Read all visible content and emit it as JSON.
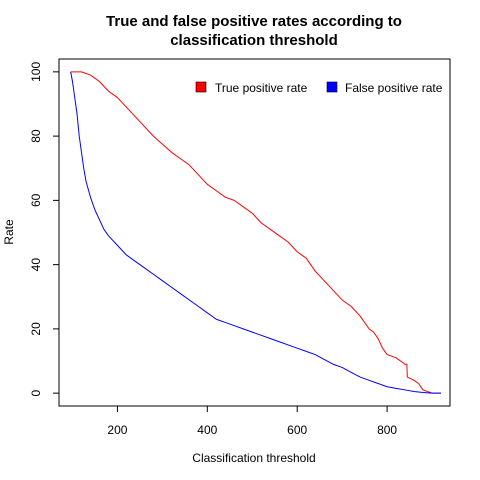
{
  "chart_data": {
    "type": "line",
    "title_lines": [
      "True and false positive rates according to",
      "classification threshold"
    ],
    "xlabel": "Classification threshold",
    "ylabel": "Rate",
    "xlim": [
      70,
      940
    ],
    "ylim": [
      -4,
      104
    ],
    "x_ticks": [
      200,
      400,
      600,
      800
    ],
    "y_ticks": [
      0,
      20,
      40,
      60,
      80,
      100
    ],
    "grid": false,
    "legend_position": "top-right",
    "colors": {
      "true_positive": "#ff0000",
      "false_positive": "#0000ff"
    },
    "series": [
      {
        "name": "True positive rate",
        "color": "#ff0000",
        "points": [
          [
            96,
            100
          ],
          [
            120,
            100
          ],
          [
            140,
            99
          ],
          [
            160,
            97
          ],
          [
            180,
            94
          ],
          [
            200,
            92
          ],
          [
            220,
            89
          ],
          [
            240,
            86
          ],
          [
            260,
            83
          ],
          [
            280,
            80
          ],
          [
            300,
            77.5
          ],
          [
            320,
            75
          ],
          [
            340,
            73
          ],
          [
            360,
            71
          ],
          [
            380,
            68
          ],
          [
            400,
            65
          ],
          [
            420,
            63
          ],
          [
            440,
            61
          ],
          [
            460,
            60
          ],
          [
            480,
            58
          ],
          [
            500,
            56
          ],
          [
            520,
            53
          ],
          [
            540,
            51
          ],
          [
            560,
            49
          ],
          [
            580,
            47
          ],
          [
            600,
            44
          ],
          [
            620,
            42
          ],
          [
            640,
            38
          ],
          [
            660,
            35
          ],
          [
            680,
            32
          ],
          [
            700,
            29
          ],
          [
            720,
            27
          ],
          [
            740,
            24
          ],
          [
            760,
            20
          ],
          [
            770,
            19
          ],
          [
            780,
            17
          ],
          [
            790,
            14
          ],
          [
            800,
            12
          ],
          [
            820,
            11
          ],
          [
            840,
            9
          ],
          [
            844,
            9
          ],
          [
            845,
            5
          ],
          [
            860,
            4
          ],
          [
            870,
            3
          ],
          [
            880,
            1
          ],
          [
            900,
            0
          ],
          [
            920,
            0
          ]
        ]
      },
      {
        "name": "False positive rate",
        "color": "#0000ff",
        "points": [
          [
            96,
            100
          ],
          [
            100,
            97
          ],
          [
            105,
            92
          ],
          [
            110,
            87
          ],
          [
            115,
            80
          ],
          [
            120,
            75
          ],
          [
            125,
            70
          ],
          [
            130,
            66
          ],
          [
            140,
            61
          ],
          [
            150,
            57
          ],
          [
            160,
            54
          ],
          [
            170,
            51
          ],
          [
            180,
            49
          ],
          [
            200,
            46
          ],
          [
            220,
            43
          ],
          [
            240,
            41
          ],
          [
            260,
            39
          ],
          [
            280,
            37
          ],
          [
            300,
            35
          ],
          [
            320,
            33
          ],
          [
            340,
            31
          ],
          [
            360,
            29
          ],
          [
            380,
            27
          ],
          [
            400,
            25
          ],
          [
            420,
            23
          ],
          [
            440,
            22
          ],
          [
            460,
            21
          ],
          [
            480,
            20
          ],
          [
            500,
            19
          ],
          [
            520,
            18
          ],
          [
            540,
            17
          ],
          [
            560,
            16
          ],
          [
            580,
            15
          ],
          [
            600,
            14
          ],
          [
            620,
            13
          ],
          [
            640,
            12
          ],
          [
            660,
            10.5
          ],
          [
            680,
            9
          ],
          [
            700,
            8
          ],
          [
            720,
            6.5
          ],
          [
            740,
            5
          ],
          [
            760,
            4
          ],
          [
            780,
            3
          ],
          [
            800,
            2
          ],
          [
            820,
            1.5
          ],
          [
            840,
            1
          ],
          [
            860,
            0.5
          ],
          [
            880,
            0.2
          ],
          [
            900,
            0
          ],
          [
            920,
            0
          ]
        ]
      }
    ]
  }
}
